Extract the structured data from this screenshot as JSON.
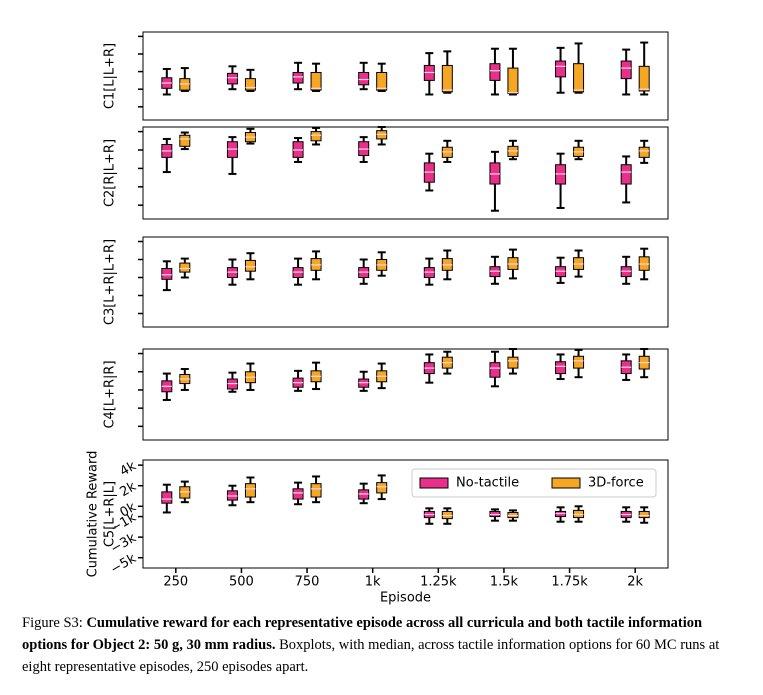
{
  "ylabel": "Cumulative Reward",
  "chart_data": [
    {
      "type": "box",
      "ylabel": "C1[L|L+R]",
      "ylim": [
        -5500,
        4500
      ],
      "yticks": [
        4000,
        2000,
        0,
        -2000,
        -4000
      ],
      "series": [
        {
          "color": "#e8308a",
          "values": [
            [
              -2600,
              -1900,
              -1300,
              -700,
              300
            ],
            [
              -2000,
              -1400,
              -700,
              -200,
              600
            ],
            [
              -2000,
              -1300,
              -600,
              -100,
              1000
            ],
            [
              -2000,
              -1500,
              -900,
              -100,
              1000
            ],
            [
              -2600,
              -1000,
              -100,
              700,
              2100
            ],
            [
              -2600,
              -1000,
              100,
              900,
              2600
            ],
            [
              -2400,
              -600,
              600,
              1200,
              2700
            ],
            [
              -2600,
              -800,
              400,
              1200,
              2500
            ]
          ]
        },
        {
          "color": "#f5a623",
          "values": [
            [
              -2200,
              -2100,
              -1400,
              -800,
              400
            ],
            [
              -2200,
              -2100,
              -1800,
              -800,
              200
            ],
            [
              -2200,
              -2100,
              -1900,
              -100,
              900
            ],
            [
              -2200,
              -2100,
              -1900,
              -100,
              900
            ],
            [
              -2400,
              -2300,
              -2100,
              700,
              2300
            ],
            [
              -2600,
              -2500,
              -2400,
              400,
              2600
            ],
            [
              -2400,
              -2300,
              -2100,
              900,
              3200
            ],
            [
              -2600,
              -2200,
              -2000,
              600,
              3300
            ]
          ]
        }
      ]
    },
    {
      "type": "box",
      "ylabel": "C2[R|L+R]",
      "ylim": [
        -5500,
        4500
      ],
      "yticks": [
        4000,
        2000,
        0,
        -2000,
        -4000
      ],
      "series": [
        {
          "color": "#e8308a",
          "values": [
            [
              -400,
              1200,
              1900,
              2600,
              3200
            ],
            [
              -600,
              1200,
              2100,
              2900,
              3400
            ],
            [
              700,
              1200,
              2000,
              2900,
              3300
            ],
            [
              700,
              1400,
              2100,
              2900,
              3400
            ],
            [
              -2400,
              -1500,
              -400,
              600,
              1600
            ],
            [
              -4600,
              -1700,
              -600,
              600,
              1800
            ],
            [
              -4300,
              -1700,
              -600,
              400,
              1600
            ],
            [
              -3700,
              -1700,
              -400,
              400,
              1300
            ]
          ]
        },
        {
          "color": "#f5a623",
          "values": [
            [
              2100,
              2400,
              3200,
              3600,
              3900
            ],
            [
              2700,
              2900,
              3400,
              3900,
              4300
            ],
            [
              2600,
              3000,
              3600,
              4000,
              4400
            ],
            [
              2600,
              3200,
              3700,
              4100,
              4500
            ],
            [
              700,
              1200,
              1800,
              2300,
              3000
            ],
            [
              1000,
              1300,
              1900,
              2400,
              3000
            ],
            [
              1000,
              1300,
              1800,
              2300,
              3000
            ],
            [
              600,
              1200,
              1900,
              2300,
              3000
            ]
          ]
        }
      ]
    },
    {
      "type": "box",
      "ylabel": "C3[L+R|L+R]",
      "ylim": [
        -5500,
        4500
      ],
      "yticks": [
        4000,
        2000,
        0,
        -2000,
        -4000
      ],
      "series": [
        {
          "color": "#e8308a",
          "values": [
            [
              -1400,
              -200,
              300,
              1000,
              1800
            ],
            [
              -800,
              0,
              600,
              1100,
              2000
            ],
            [
              -800,
              0,
              600,
              1100,
              2100
            ],
            [
              -700,
              0,
              600,
              1100,
              2000
            ],
            [
              -800,
              0,
              600,
              1100,
              2100
            ],
            [
              -700,
              100,
              700,
              1200,
              2300
            ],
            [
              -600,
              100,
              700,
              1200,
              2200
            ],
            [
              -700,
              100,
              700,
              1200,
              2300
            ]
          ]
        },
        {
          "color": "#f5a623",
          "values": [
            [
              0,
              600,
              1000,
              1600,
              2100
            ],
            [
              -200,
              700,
              1200,
              1900,
              2700
            ],
            [
              -200,
              800,
              1400,
              2100,
              2900
            ],
            [
              200,
              800,
              1400,
              2000,
              2800
            ],
            [
              -200,
              800,
              1400,
              2100,
              3000
            ],
            [
              -100,
              900,
              1500,
              2200,
              3100
            ],
            [
              100,
              900,
              1500,
              2200,
              3000
            ],
            [
              -200,
              800,
              1500,
              2300,
              3200
            ]
          ]
        }
      ]
    },
    {
      "type": "box",
      "ylabel": "C4[L+R|R]",
      "ylim": [
        -5500,
        4500
      ],
      "yticks": [
        4000,
        2000,
        0,
        -2000,
        -4000
      ],
      "series": [
        {
          "color": "#e8308a",
          "values": [
            [
              -1100,
              -200,
              400,
              1000,
              1800
            ],
            [
              -200,
              100,
              700,
              1200,
              1900
            ],
            [
              -100,
              300,
              800,
              1300,
              2100
            ],
            [
              -100,
              300,
              800,
              1200,
              2000
            ],
            [
              800,
              1800,
              2400,
              3000,
              3900
            ],
            [
              400,
              1400,
              2400,
              3000,
              4200
            ],
            [
              1200,
              1800,
              2600,
              3100,
              3900
            ],
            [
              1100,
              1800,
              2500,
              3200,
              3900
            ]
          ]
        },
        {
          "color": "#f5a623",
          "values": [
            [
              0,
              700,
              1200,
              1700,
              2300
            ],
            [
              0,
              800,
              1400,
              2000,
              2900
            ],
            [
              100,
              900,
              1500,
              2100,
              3000
            ],
            [
              200,
              900,
              1500,
              2100,
              2900
            ],
            [
              1800,
              2400,
              3000,
              3600,
              4200
            ],
            [
              1800,
              2400,
              3200,
              3600,
              4500
            ],
            [
              1400,
              2400,
              3200,
              3700,
              4400
            ],
            [
              1400,
              2300,
              3000,
              3700,
              4500
            ]
          ]
        }
      ]
    },
    {
      "type": "box",
      "ylabel": "C5[L+R|L]",
      "xlabel": "Episode",
      "legend": "upper right",
      "categories": [
        "250",
        "500",
        "750",
        "1k",
        "1.25k",
        "1.5k",
        "1.75k",
        "2k"
      ],
      "ylim": [
        -6000,
        4500
      ],
      "yticks": [
        {
          "value": 4000,
          "label": "4k"
        },
        {
          "value": 2000,
          "label": "2k"
        },
        {
          "value": 0,
          "label": "0k"
        },
        {
          "value": -1000,
          "label": "−1k"
        },
        {
          "value": -3000,
          "label": "−3k"
        },
        {
          "value": -5000,
          "label": "−5k"
        }
      ],
      "series": [
        {
          "name": "No-tactile",
          "color": "#e8308a",
          "values": [
            [
              -600,
              300,
              700,
              1400,
              2100
            ],
            [
              100,
              600,
              1000,
              1500,
              2000
            ],
            [
              200,
              700,
              1300,
              1700,
              2300
            ],
            [
              300,
              700,
              1200,
              1600,
              2200
            ],
            [
              -1700,
              -1100,
              -800,
              -500,
              -200
            ],
            [
              -1400,
              -1000,
              -800,
              -500,
              -300
            ],
            [
              -1500,
              -1000,
              -700,
              -500,
              -100
            ],
            [
              -1500,
              -1100,
              -800,
              -500,
              -100
            ]
          ]
        },
        {
          "name": "3D-force",
          "color": "#f5a623",
          "values": [
            [
              400,
              800,
              1400,
              1900,
              2400
            ],
            [
              400,
              900,
              1700,
              2200,
              2800
            ],
            [
              400,
              900,
              1700,
              2200,
              2900
            ],
            [
              700,
              1300,
              1900,
              2300,
              3000
            ],
            [
              -1700,
              -1200,
              -900,
              -500,
              -200
            ],
            [
              -1400,
              -1100,
              -900,
              -600,
              -400
            ],
            [
              -1500,
              -1100,
              -800,
              -400,
              0
            ],
            [
              -1600,
              -1100,
              -900,
              -500,
              -100
            ]
          ]
        }
      ]
    }
  ],
  "caption": {
    "label": "Figure S3:",
    "bold": "Cumulative reward for each representative episode across all curricula and both tactile information options for Object 2: 50 g, 30 mm radius.",
    "text": "Boxplots, with median, across tactile information options for 60 MC runs at eight representative episodes, 250 episodes apart."
  }
}
